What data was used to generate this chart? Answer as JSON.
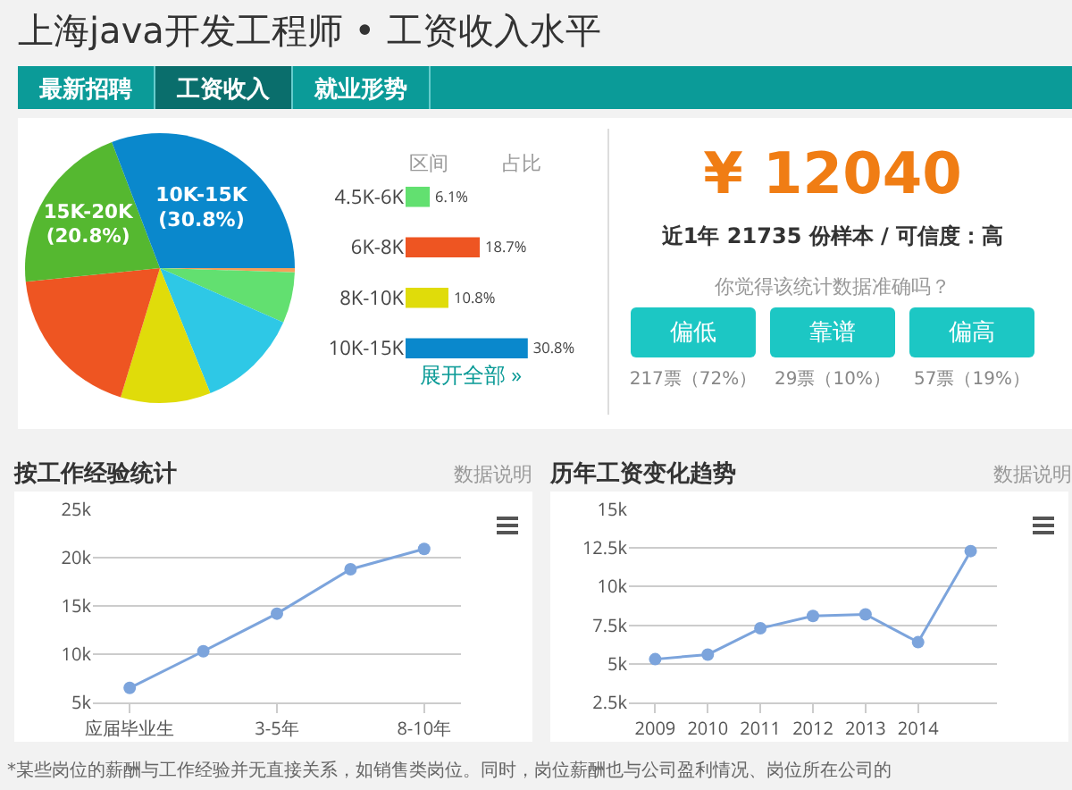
{
  "chart_data": [
    {
      "type": "pie",
      "title": "上海java开发工程师 • 工资收入水平",
      "annotations": [
        "最新招聘",
        "工资收入",
        "就业形势"
      ],
      "categories": [
        null,
        null,
        null,
        null,
        null,
        null,
        null
      ],
      "values": [
        0.5,
        6.1,
        12.3,
        10.8,
        18.7,
        20.8,
        30.8
      ],
      "colors": [
        "#f5a05a",
        "#62e070",
        "#2ec8e6",
        "#e0dc0a",
        "#ee5522",
        "#55b830",
        "#0a88cc"
      ],
      "value_labels": [
        null,
        null,
        null,
        null,
        null,
        "15K-20K\n(20.8%)",
        "10K-15K\n(30.8%)"
      ]
    },
    {
      "type": "bar",
      "orientation": "horizontal",
      "categories": [
        "4.5K-6K",
        "6K-8K",
        "8K-10K",
        "10K-15K"
      ],
      "values": [
        6.1,
        18.7,
        10.8,
        30.8
      ],
      "colors": [
        "#62e070",
        "#ee5522",
        "#e0dc0a",
        "#0a88cc"
      ],
      "value_labels": [
        "6.1%",
        "18.7%",
        "10.8%",
        "30.8%"
      ],
      "tick_labels": "y",
      "annotations": [
        "区间",
        "占比",
        "展开全部 »"
      ]
    },
    {
      "type": "other",
      "title": "¥ 12040",
      "subtitle": "近1年 21735 份样本 / 可信度：高",
      "annotations": [
        "你觉得该统计数据准确吗？",
        "偏低",
        "靠谱",
        "偏高",
        "217票（72%）",
        "29票（10%）",
        "57票（19%）"
      ]
    },
    {
      "type": "line",
      "title": "按工作经验统计",
      "annotations": [
        "数据说明",
        "*某些岗位的薪酬与工作经验并无直接关系，如销售类岗位。同时，岗位薪酬也与公司盈利情况、岗位所在公司的"
      ],
      "categories": [
        "应届毕业生",
        null,
        "3-5年",
        null,
        "8-10年"
      ],
      "color": "#7ca4dc",
      "marker": "circle",
      "grid": "y",
      "values": [
        6500,
        10300,
        14200,
        18800,
        20900
      ],
      "ylim": [
        5000,
        25000
      ],
      "yticks": [
        {
          "value": 5000,
          "label": "5k"
        },
        {
          "value": 10000,
          "label": "10k"
        },
        {
          "value": 15000,
          "label": "15k"
        },
        {
          "value": 20000,
          "label": "20k"
        },
        {
          "value": 25000,
          "label": "25k"
        }
      ]
    },
    {
      "type": "line",
      "title": "历年工资变化趋势",
      "annotations": [
        "数据说明"
      ],
      "categories": [
        "2009",
        "2010",
        "2011",
        "2012",
        "2013",
        "2014",
        null
      ],
      "color": "#7ca4dc",
      "marker": "circle",
      "grid": "y",
      "values": [
        5300,
        5600,
        7300,
        8100,
        8200,
        6400,
        12300
      ],
      "ylim": [
        2500,
        15000
      ],
      "yticks": [
        {
          "value": 2500,
          "label": "2.5k"
        },
        {
          "value": 5000,
          "label": "5k"
        },
        {
          "value": 7500,
          "label": "7.5k"
        },
        {
          "value": 10000,
          "label": "10k"
        },
        {
          "value": 12500,
          "label": "12.5k"
        },
        {
          "value": 15000,
          "label": "15k"
        }
      ]
    }
  ]
}
